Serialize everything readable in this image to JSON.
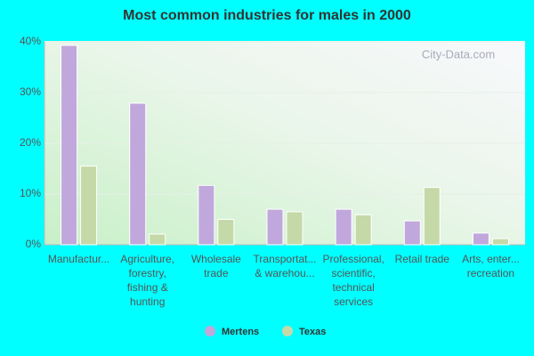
{
  "chart_data": {
    "type": "bar",
    "title": "Most common industries for males in 2000",
    "watermark": "City-Data.com",
    "categories": [
      [
        "Manufactur..."
      ],
      [
        "Agriculture,",
        "forestry,",
        "fishing &",
        "hunting"
      ],
      [
        "Wholesale",
        "trade"
      ],
      [
        "Transportat...",
        "& warehou..."
      ],
      [
        "Professional,",
        "scientific,",
        "technical",
        "services"
      ],
      [
        "Retail trade"
      ],
      [
        "Arts, enter...",
        "recreation"
      ]
    ],
    "series": [
      {
        "name": "Mertens",
        "color": "#c0a8dc",
        "values": [
          39.3,
          27.9,
          11.7,
          7.0,
          7.0,
          4.7,
          2.3
        ]
      },
      {
        "name": "Texas",
        "color": "#c5d9a8",
        "values": [
          15.5,
          2.1,
          5.0,
          6.5,
          5.9,
          11.3,
          1.2
        ]
      }
    ],
    "ylim": [
      0,
      40
    ],
    "yticks": [
      {
        "value": 0,
        "label": "0%"
      },
      {
        "value": 10,
        "label": "10%"
      },
      {
        "value": 20,
        "label": "20%"
      },
      {
        "value": 30,
        "label": "30%"
      },
      {
        "value": 40,
        "label": "40%"
      }
    ],
    "grid": true,
    "legend": "bottom"
  }
}
